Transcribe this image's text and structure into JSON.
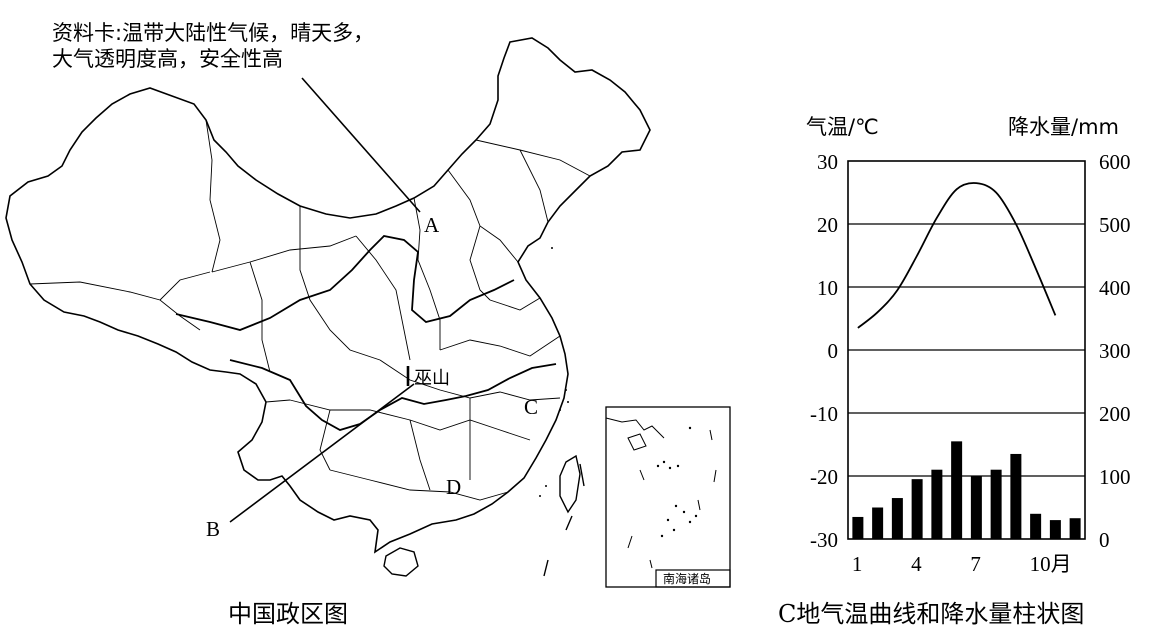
{
  "info_card": {
    "line1": "资料卡:温带大陆性气候，晴天多，",
    "line2": "大气透明度高，安全性高"
  },
  "map": {
    "caption": "中国政区图",
    "point_a": "A",
    "point_b": "B",
    "point_c": "C",
    "point_d": "D",
    "wushan": "巫山",
    "inset_label": "南海诸岛"
  },
  "chart_data": {
    "type": "bar+line",
    "caption": "C地气温曲线和降水量柱状图",
    "left_axis_label": "气温/℃",
    "right_axis_label": "降水量/mm",
    "temp_ticks": [
      "30",
      "20",
      "10",
      "0",
      "-10",
      "-20",
      "-30"
    ],
    "precip_ticks": [
      "600",
      "500",
      "400",
      "300",
      "200",
      "100",
      "0"
    ],
    "x_tick_labels": [
      "1",
      "4",
      "7",
      "10月"
    ],
    "temp_range": [
      -30,
      30
    ],
    "precip_range": [
      0,
      600
    ],
    "months": [
      1,
      2,
      3,
      4,
      5,
      6,
      7,
      8,
      9,
      10,
      11,
      12
    ],
    "precipitation": [
      35,
      50,
      65,
      95,
      110,
      155,
      100,
      110,
      135,
      40,
      30,
      33
    ],
    "temperature": [
      3.5,
      6,
      9.5,
      15,
      21,
      25.5,
      26.5,
      25,
      20,
      13,
      5.5,
      null
    ],
    "temperature_curve_end": 5.5
  }
}
